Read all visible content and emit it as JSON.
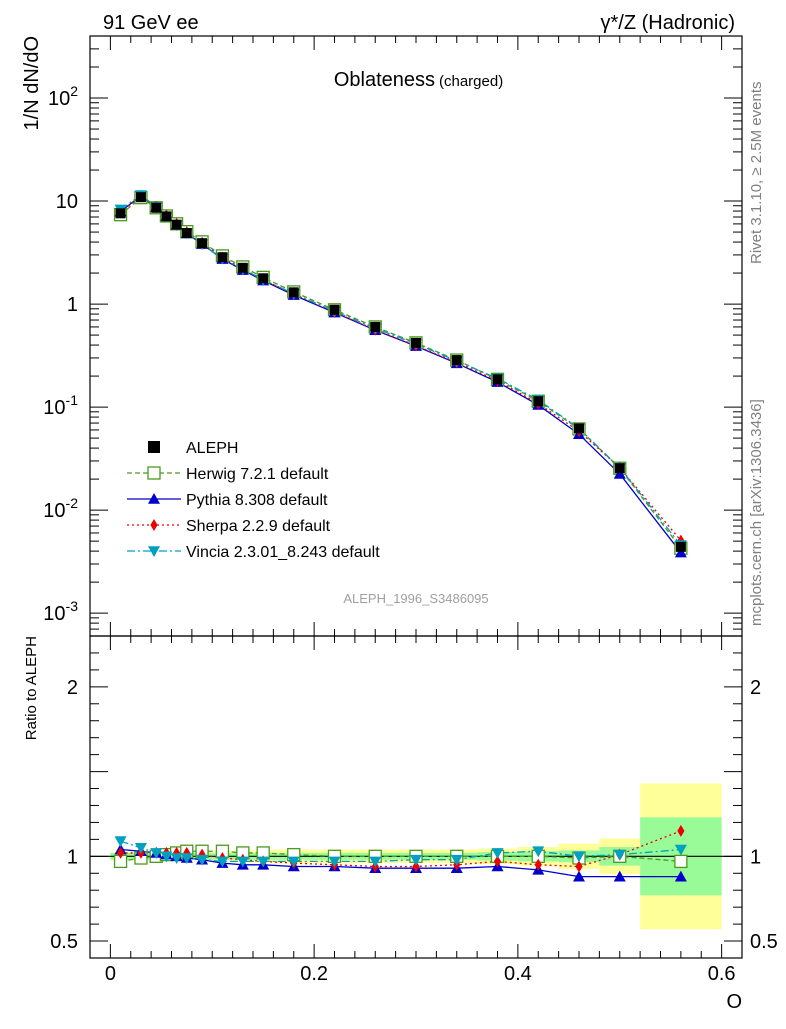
{
  "header": {
    "left": "91 GeV ee",
    "right_sup": "γ*/Z (Hadronic)"
  },
  "side": {
    "rivet": "Rivet 3.1.10, ≥ 2.5M events",
    "mcplots": "mcplots.cern.ch [arXiv:1306.3436]"
  },
  "chart_data": {
    "type": "line",
    "title": "Oblateness",
    "subtitle": "(charged)",
    "analysis": "ALEPH_1996_S3486095",
    "xlabel": "O",
    "ylabel": "1/N dN/dO",
    "ratio_ylabel": "Ratio to ALEPH",
    "xlim": [
      -0.02,
      0.62
    ],
    "ylim": [
      0.0006,
      400
    ],
    "ylog": true,
    "ratio_ylim": [
      0.4,
      2.3
    ],
    "x_ticks": [
      0,
      0.2,
      0.4,
      0.6
    ],
    "x_tick_labels": [
      "0",
      "0.2",
      "0.4",
      "0.6"
    ],
    "y_ticks_main": [
      {
        "v": 0.001,
        "base": "10",
        "exp": "-3"
      },
      {
        "v": 0.01,
        "base": "10",
        "exp": "-2"
      },
      {
        "v": 0.1,
        "base": "10",
        "exp": "-1"
      },
      {
        "v": 1,
        "base": "1",
        "exp": ""
      },
      {
        "v": 10,
        "base": "10",
        "exp": ""
      },
      {
        "v": 100,
        "base": "10",
        "exp": "2"
      }
    ],
    "ratio_ticks": [
      {
        "v": 0.5,
        "label": "0.5"
      },
      {
        "v": 1,
        "label": "1"
      },
      {
        "v": 2,
        "label": "2"
      }
    ],
    "bins": [
      {
        "lo": 0.0,
        "hi": 0.02
      },
      {
        "lo": 0.02,
        "hi": 0.04
      },
      {
        "lo": 0.04,
        "hi": 0.05
      },
      {
        "lo": 0.05,
        "hi": 0.06
      },
      {
        "lo": 0.06,
        "hi": 0.07
      },
      {
        "lo": 0.07,
        "hi": 0.08
      },
      {
        "lo": 0.08,
        "hi": 0.1
      },
      {
        "lo": 0.1,
        "hi": 0.12
      },
      {
        "lo": 0.12,
        "hi": 0.14
      },
      {
        "lo": 0.14,
        "hi": 0.16
      },
      {
        "lo": 0.16,
        "hi": 0.2
      },
      {
        "lo": 0.2,
        "hi": 0.24
      },
      {
        "lo": 0.24,
        "hi": 0.28
      },
      {
        "lo": 0.28,
        "hi": 0.32
      },
      {
        "lo": 0.32,
        "hi": 0.36
      },
      {
        "lo": 0.36,
        "hi": 0.4
      },
      {
        "lo": 0.4,
        "hi": 0.44
      },
      {
        "lo": 0.44,
        "hi": 0.48
      },
      {
        "lo": 0.48,
        "hi": 0.52
      },
      {
        "lo": 0.52,
        "hi": 0.6
      }
    ],
    "x": [
      0.01,
      0.03,
      0.045,
      0.055,
      0.065,
      0.075,
      0.09,
      0.11,
      0.13,
      0.15,
      0.18,
      0.22,
      0.26,
      0.3,
      0.34,
      0.38,
      0.42,
      0.46,
      0.5,
      0.56
    ],
    "data_series": {
      "name": "ALEPH",
      "color": "#000000",
      "values": [
        7.6,
        10.9,
        8.6,
        7.1,
        5.9,
        4.9,
        3.9,
        2.85,
        2.25,
        1.78,
        1.3,
        0.88,
        0.6,
        0.42,
        0.286,
        0.186,
        0.114,
        0.062,
        0.0255,
        0.0044
      ]
    },
    "band_stat": [
      0.02,
      0.02,
      0.02,
      0.02,
      0.02,
      0.02,
      0.02,
      0.02,
      0.02,
      0.02,
      0.02,
      0.02,
      0.02,
      0.02,
      0.02,
      0.025,
      0.03,
      0.035,
      0.055,
      0.23
    ],
    "band_total": [
      0.025,
      0.025,
      0.025,
      0.025,
      0.025,
      0.025,
      0.025,
      0.03,
      0.035,
      0.035,
      0.04,
      0.04,
      0.04,
      0.04,
      0.04,
      0.045,
      0.055,
      0.075,
      0.105,
      0.43
    ],
    "series": [
      {
        "name": "Herwig 7.2.1 default",
        "color": "#4a9a1e",
        "dash": "5,3",
        "marker": "open-square",
        "ratio": [
          0.97,
          0.99,
          1.0,
          1.01,
          1.02,
          1.03,
          1.03,
          1.03,
          1.02,
          1.02,
          1.01,
          1.0,
          1.0,
          1.0,
          1.0,
          1.0,
          1.0,
          0.99,
          1.0,
          0.97
        ]
      },
      {
        "name": "Pythia 8.308 default",
        "color": "#0000cc",
        "dash": "",
        "marker": "filled-triangle-up",
        "ratio": [
          1.04,
          1.03,
          1.02,
          1.01,
          1.0,
          0.99,
          0.98,
          0.96,
          0.95,
          0.95,
          0.94,
          0.94,
          0.93,
          0.93,
          0.93,
          0.94,
          0.92,
          0.88,
          0.88,
          0.88
        ]
      },
      {
        "name": "Sherpa 2.2.9 default",
        "color": "#ee0000",
        "dash": "2,3",
        "marker": "filled-diamond",
        "ratio": [
          1.02,
          1.02,
          1.02,
          1.02,
          1.02,
          1.02,
          1.01,
          0.99,
          0.98,
          0.97,
          0.96,
          0.95,
          0.94,
          0.94,
          0.95,
          0.97,
          0.95,
          0.94,
          1.01,
          1.15
        ]
      },
      {
        "name": "Vincia 2.3.01_8.243 default",
        "color": "#00a0c0",
        "dash": "8,3,2,3",
        "marker": "filled-triangle-down",
        "ratio": [
          1.09,
          1.05,
          1.02,
          1.0,
          0.99,
          0.99,
          0.98,
          0.97,
          0.97,
          0.97,
          0.97,
          0.97,
          0.97,
          0.98,
          0.98,
          1.02,
          1.03,
          1.0,
          1.01,
          1.04
        ]
      }
    ],
    "legend_position": "lower-left"
  }
}
